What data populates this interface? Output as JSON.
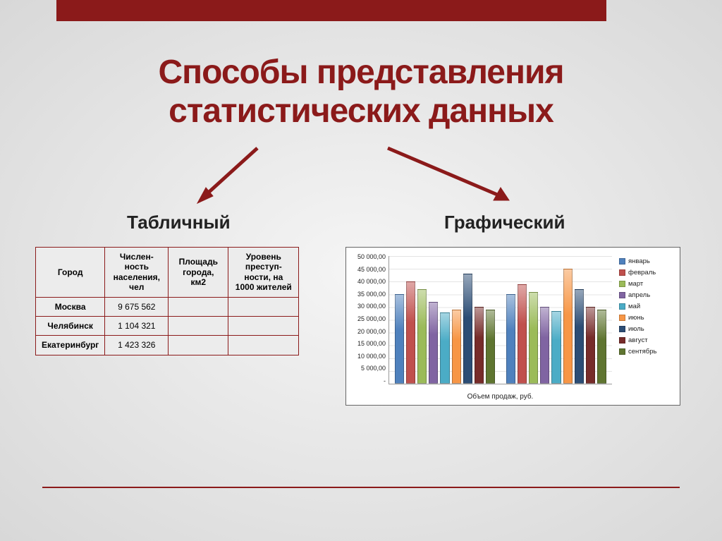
{
  "title_line1": "Способы представления",
  "title_line2": "статистических данных",
  "subtitle_left": "Табличный",
  "subtitle_right": "Графический",
  "accent_color": "#8b1a1a",
  "table": {
    "headers": [
      "Город",
      "Числен-ность населения, чел",
      "Площадь города, км2",
      "Уровень преступ-ности, на 1000 жителей"
    ],
    "rows": [
      [
        "Москва",
        "9 675 562",
        "",
        ""
      ],
      [
        "Челябинск",
        "1 104 321",
        "",
        ""
      ],
      [
        "Екатеринбург",
        "1 423 326",
        "",
        ""
      ]
    ]
  },
  "chart": {
    "type": "bar",
    "x_title": "Объем продаж, руб.",
    "y_max": 50000,
    "y_step": 5000,
    "y_labels": [
      "-",
      "5 000,00",
      "10 000,00",
      "15 000,00",
      "20 000,00",
      "25 000,00",
      "30 000,00",
      "35 000,00",
      "40 000,00",
      "45 000,00",
      "50 000,00"
    ],
    "series": [
      {
        "label": "январь",
        "color": "#4f81bd",
        "value": 35000
      },
      {
        "label": "февраль",
        "color": "#c0504d",
        "value": 40000
      },
      {
        "label": "март",
        "color": "#9bbb59",
        "value": 37000
      },
      {
        "label": "апрель",
        "color": "#8064a2",
        "value": 32000
      },
      {
        "label": "май",
        "color": "#4bacc6",
        "value": 28000
      },
      {
        "label": "июнь",
        "color": "#f79646",
        "value": 29000
      },
      {
        "label": "июль",
        "color": "#2c4d75",
        "value": 43000
      },
      {
        "label": "август",
        "color": "#772c2a",
        "value": 30000
      },
      {
        "label": "сентябрь",
        "color": "#5f7530",
        "value": 29000
      }
    ],
    "series2": [
      {
        "color": "#4f81bd",
        "value": 35000
      },
      {
        "color": "#c0504d",
        "value": 39000
      },
      {
        "color": "#9bbb59",
        "value": 36000
      },
      {
        "color": "#8064a2",
        "value": 30000
      },
      {
        "color": "#4bacc6",
        "value": 28500
      },
      {
        "color": "#f79646",
        "value": 45000
      },
      {
        "color": "#2c4d75",
        "value": 37000
      },
      {
        "color": "#772c2a",
        "value": 30000
      },
      {
        "color": "#5f7530",
        "value": 29000
      }
    ]
  }
}
